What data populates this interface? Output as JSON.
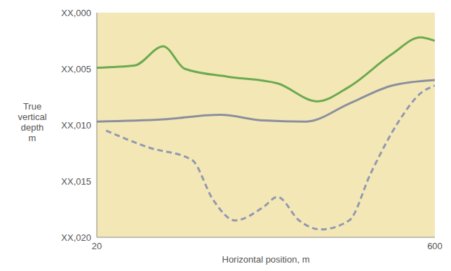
{
  "chart_data": {
    "type": "line",
    "xlabel": "Horizontal position, m",
    "ylabel": "True vertical depth m",
    "xlim": [
      20,
      600
    ],
    "xticks": [
      20,
      600
    ],
    "ylim": [
      0,
      20
    ],
    "yticks": [
      {
        "value": 0,
        "label": "XX,000"
      },
      {
        "value": 5,
        "label": "XX,005"
      },
      {
        "value": 10,
        "label": "XX,010"
      },
      {
        "value": 15,
        "label": "XX,015"
      },
      {
        "value": 20,
        "label": "XX,020"
      }
    ],
    "grid": false,
    "series": [
      {
        "color": "#6aaa50",
        "line_style": "solid",
        "x": [
          20,
          85,
          134,
          171,
          244,
          330,
          398,
          453,
          526,
          575,
          600
        ],
        "values": [
          4.9,
          4.7,
          3.0,
          5.0,
          5.7,
          6.3,
          7.9,
          6.6,
          3.7,
          2.2,
          2.5
        ]
      },
      {
        "color": "#8a8f9e",
        "line_style": "solid",
        "x": [
          20,
          134,
          232,
          306,
          379,
          453,
          526,
          600
        ],
        "values": [
          9.7,
          9.5,
          9.1,
          9.6,
          9.7,
          8.1,
          6.5,
          6.0
        ]
      },
      {
        "color": "#9099b0",
        "line_style": "dashed",
        "x": [
          36,
          109,
          183,
          220,
          257,
          306,
          330,
          367,
          404,
          453,
          490,
          539,
          575,
          600
        ],
        "values": [
          10.5,
          12.0,
          13.1,
          16.7,
          18.5,
          17.3,
          16.4,
          18.5,
          19.3,
          18.5,
          14.3,
          9.6,
          7.2,
          6.5
        ]
      }
    ]
  }
}
